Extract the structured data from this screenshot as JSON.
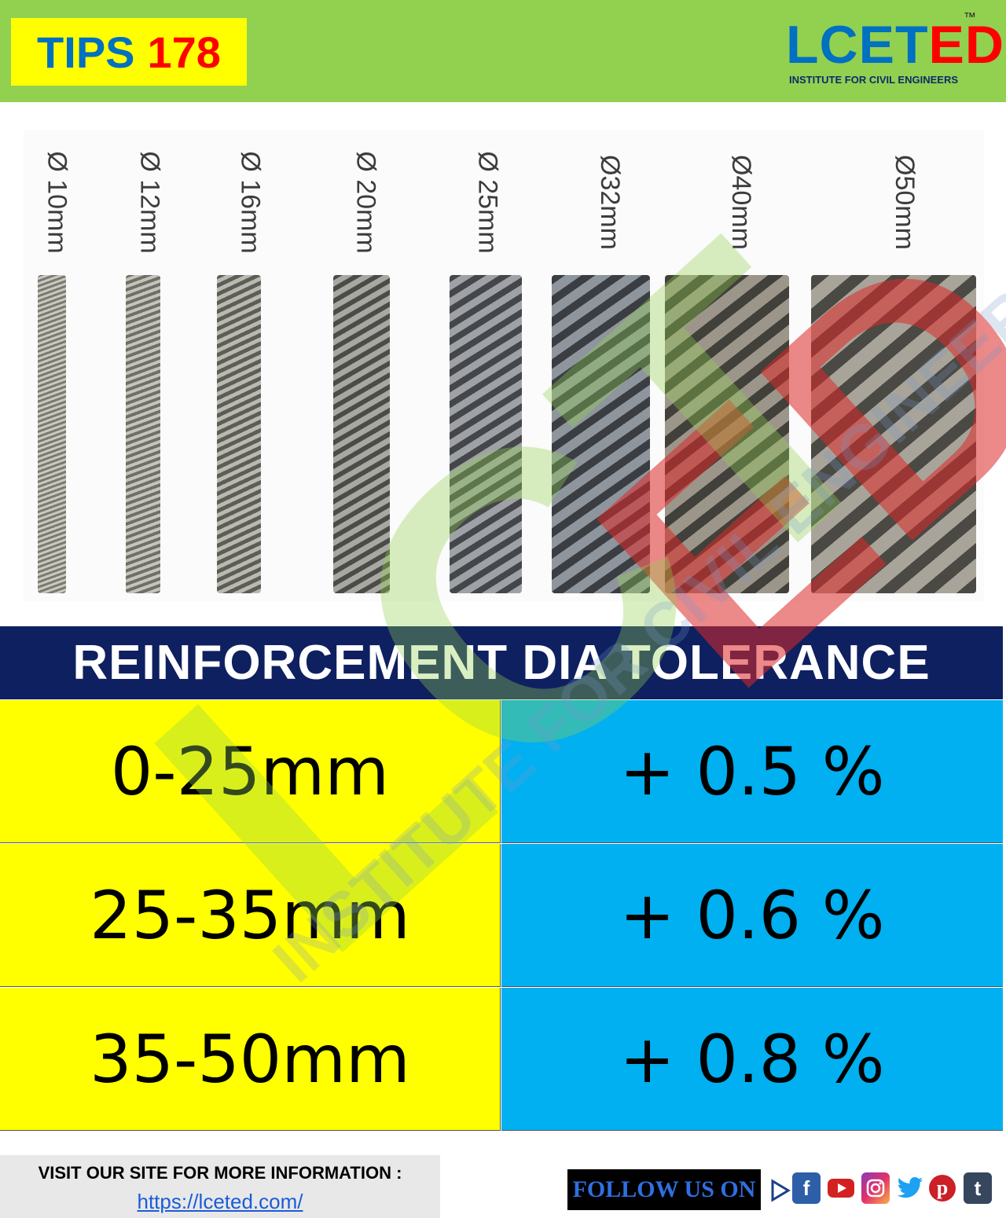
{
  "header": {
    "tips_word": "TIPS",
    "tips_number": "178",
    "logo_blue": "LCET",
    "logo_red": "ED",
    "logo_tm": "™",
    "logo_tagline": "INSTITUTE FOR CIVIL ENGINEERS"
  },
  "rebars": {
    "labels": [
      "Ø 10mm",
      "Ø 12mm",
      "Ø 16mm",
      "Ø 20mm",
      "Ø 25mm",
      "Ø32mm",
      "Ø40mm",
      "Ø50mm"
    ]
  },
  "table": {
    "title": "REINFORCEMENT DIA TOLERANCE",
    "rows": [
      {
        "range": "0-25mm",
        "tolerance": "+ 0.5 %"
      },
      {
        "range": "25-35mm",
        "tolerance": "+ 0.6 %"
      },
      {
        "range": "35-50mm",
        "tolerance": "+ 0.8 %"
      }
    ]
  },
  "watermark": {
    "big": "LCETED",
    "tagline": "INSTITUTE FOR CIVIL ENGINEERS"
  },
  "footer": {
    "visit_text": "VISIT OUR SITE FOR MORE INFORMATION :",
    "url": "https://lceted.com/",
    "follow_text": "FOLLOW US ON",
    "social_icons": [
      "play-icon",
      "facebook-icon",
      "youtube-icon",
      "instagram-icon",
      "twitter-icon",
      "pinterest-icon",
      "tumblr-icon"
    ]
  },
  "colors": {
    "header_bg": "#92d050",
    "tips_bg": "#ffff00",
    "brand_blue": "#0070c0",
    "brand_red": "#ff0000",
    "table_title_bg": "#0e2060",
    "left_cells": "#ffff00",
    "right_cells": "#00b0f0"
  }
}
